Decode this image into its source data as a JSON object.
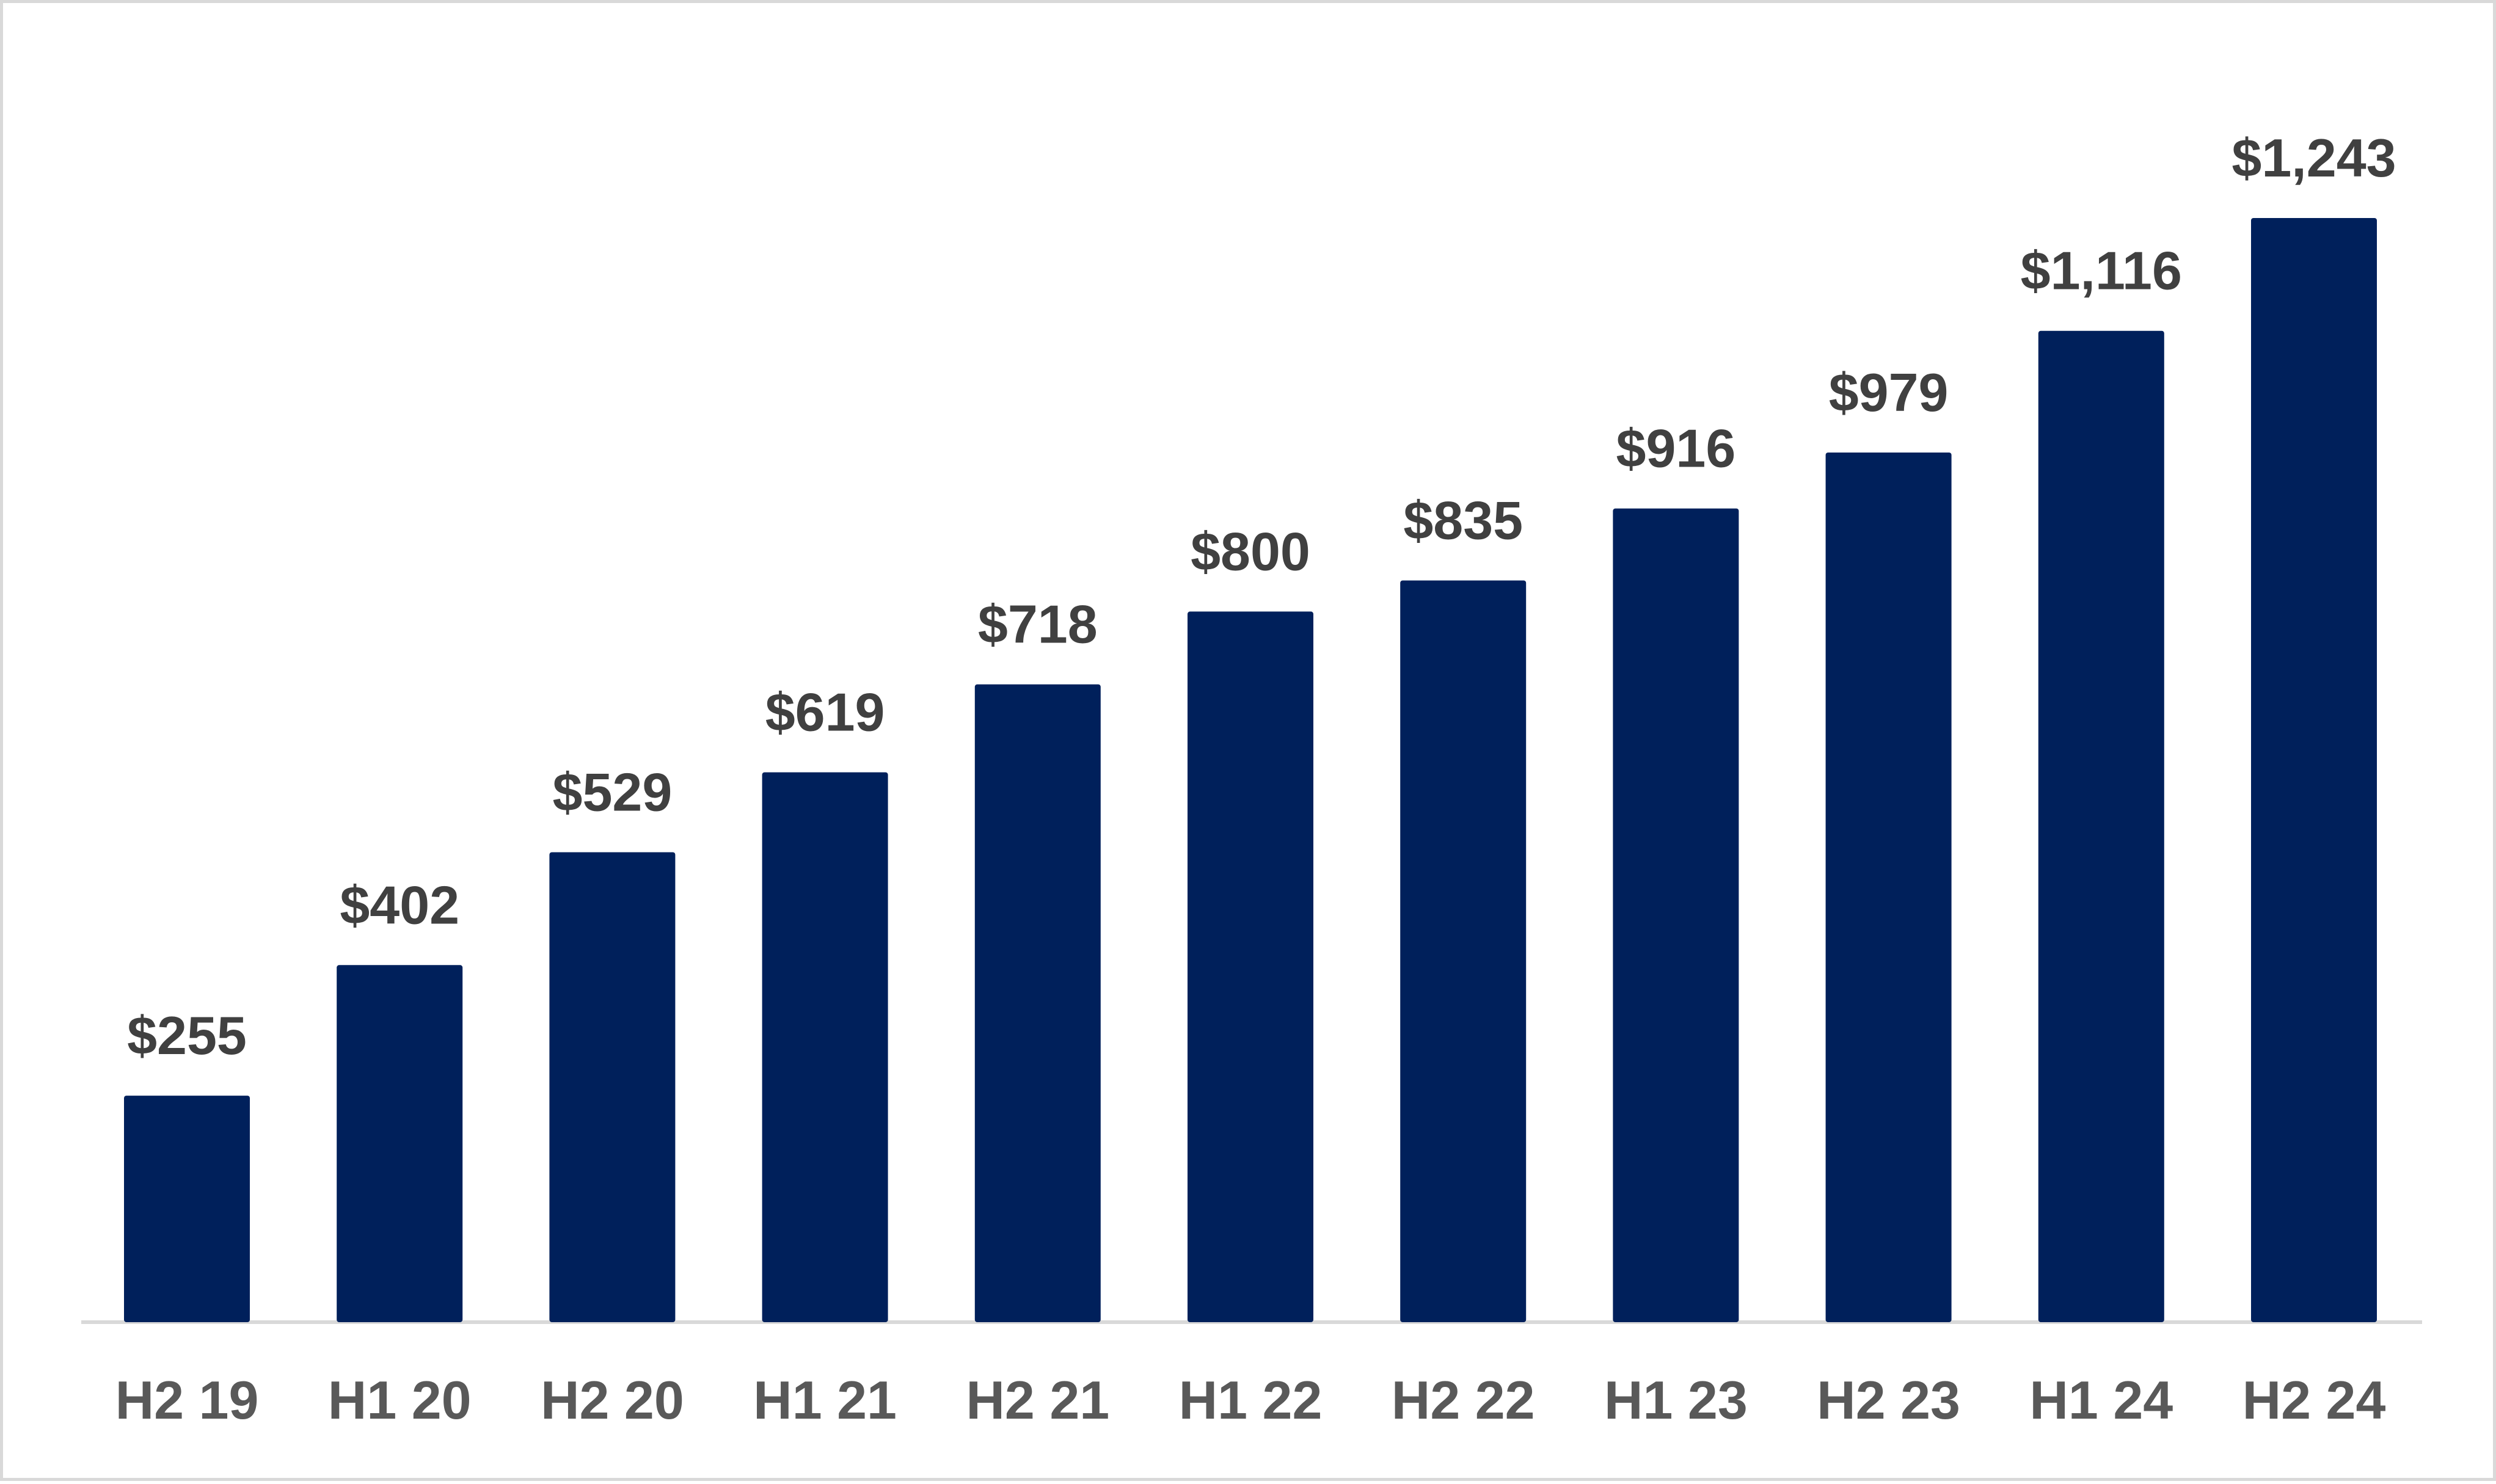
{
  "chart_data": {
    "type": "bar",
    "title": "",
    "xlabel": "",
    "ylabel": "",
    "categories": [
      "H2 19",
      "H1 20",
      "H2 20",
      "H1 21",
      "H2 21",
      "H1 22",
      "H2 22",
      "H1 23",
      "H2 23",
      "H1 24",
      "H2 24"
    ],
    "values": [
      255,
      402,
      529,
      619,
      718,
      800,
      835,
      916,
      979,
      1116,
      1243
    ],
    "value_labels": [
      "$255",
      "$402",
      "$529",
      "$619",
      "$718",
      "$800",
      "$835",
      "$916",
      "$979",
      "$1,116",
      "$1,243"
    ],
    "ylim": [
      0,
      1243
    ],
    "grid": false,
    "legend": "none",
    "colors": {
      "bar": "#00205b",
      "axis": "#d9d9d9",
      "value_label": "#404040",
      "tick_label": "#595959",
      "frame": "#d9d9d9"
    }
  }
}
